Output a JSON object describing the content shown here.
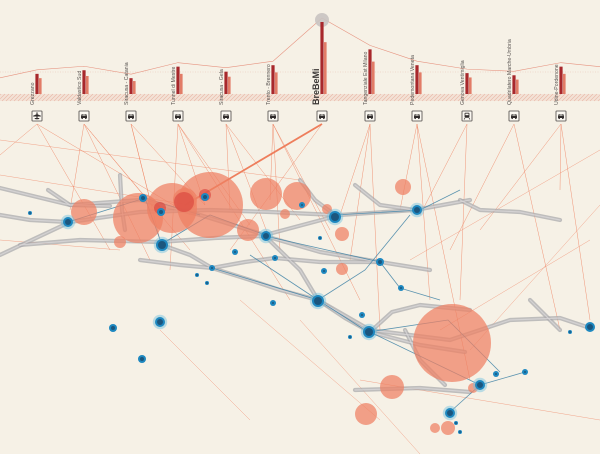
{
  "projects": [
    {
      "name": "Grezzano",
      "icon": "airplane-icon",
      "bar": 0.28,
      "light": 0.22
    },
    {
      "name": "Valdastico Sud",
      "icon": "car-icon",
      "bar": 0.33,
      "light": 0.25
    },
    {
      "name": "Siracusa - Catania",
      "icon": "car-icon",
      "bar": 0.22,
      "light": 0.18
    },
    {
      "name": "Tunnel di Mestre",
      "icon": "car-icon",
      "bar": 0.38,
      "light": 0.28
    },
    {
      "name": "Siracusa - Gela",
      "icon": "car-icon",
      "bar": 0.31,
      "light": 0.24
    },
    {
      "name": "Trento - Brennero",
      "icon": "car-icon",
      "bar": 0.4,
      "light": 0.3
    },
    {
      "name": "BreBeMi",
      "icon": "car-icon",
      "bar": 1.0,
      "light": 0.72,
      "highlight": true
    },
    {
      "name": "Tangenziale Est Milano",
      "icon": "car-icon",
      "bar": 0.62,
      "light": 0.45
    },
    {
      "name": "Pedemontana Veneta",
      "icon": "car-icon",
      "bar": 0.4,
      "light": 0.3
    },
    {
      "name": "Genova Ventimiglia",
      "icon": "train-icon",
      "bar": 0.29,
      "light": 0.23
    },
    {
      "name": "Quadrilatero Marche-Umbria",
      "icon": "car-icon",
      "bar": 0.26,
      "light": 0.2
    },
    {
      "name": "Udine-Pordenone",
      "icon": "car-icon",
      "bar": 0.38,
      "light": 0.28
    }
  ],
  "colors": {
    "background": "#f6f1e6",
    "bar_dark": "#a8282c",
    "bar_light": "#e27c67",
    "link_orange": "#ee7e5c",
    "bubble_orange": "#ef8062",
    "node_blue": "#1e88c0",
    "node_dark": "#1b4e72",
    "edge_gray": "#a7a6aa",
    "edge_blue": "#3f83a6",
    "icon_stroke": "#4a4644"
  },
  "icon_legend": {
    "airplane-icon": "airplane",
    "car-icon": "car",
    "train-icon": "train"
  }
}
